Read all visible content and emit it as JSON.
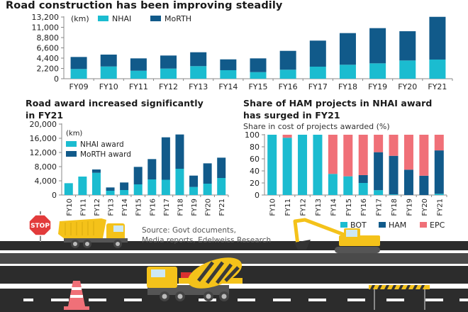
{
  "colors": {
    "nhai": "#1bbcd0",
    "morth": "#115a8a",
    "bot": "#1bbcd0",
    "ham": "#115a8a",
    "epc": "#f07078",
    "axis": "#888888",
    "text": "#222222",
    "road_dark": "#2c2c2c",
    "road_mid": "#4a4a4a",
    "yellow": "#f4c21a"
  },
  "source": {
    "line1": "Source: Govt documents,",
    "line2": "Media reports, Edelweiss Research"
  },
  "scene": {
    "stop_sign_label": "STOP"
  },
  "chart_data": [
    {
      "id": "construction",
      "type": "bar",
      "stacked": true,
      "title": "Road construction has been improving steadily",
      "unit_label": "(km)",
      "xlabel": "",
      "ylabel": "",
      "categories": [
        "FY09",
        "FY10",
        "FY11",
        "FY12",
        "FY13",
        "FY14",
        "FY15",
        "FY16",
        "FY17",
        "FY18",
        "FY19",
        "FY20",
        "FY21"
      ],
      "series": [
        {
          "name": "NHAI",
          "color_key": "nhai",
          "values": [
            2080,
            2620,
            1710,
            2170,
            2690,
            1820,
            1410,
            1930,
            2580,
            2990,
            3290,
            3900,
            4100
          ]
        },
        {
          "name": "MoRTH",
          "color_key": "morth",
          "values": [
            2570,
            2540,
            2640,
            2790,
            2970,
            2320,
            2940,
            4030,
            5570,
            6770,
            7530,
            6260,
            9140
          ]
        }
      ],
      "yticks": [
        0,
        2200,
        4400,
        6600,
        8800,
        11000,
        13200
      ],
      "ytick_labels": [
        "0",
        "2,200",
        "4,400",
        "6,600",
        "8,800",
        "11,000",
        "13,200"
      ],
      "ylim": [
        0,
        13200
      ],
      "legend": "top-left",
      "grid": false
    },
    {
      "id": "award",
      "type": "bar",
      "stacked": true,
      "title": "Road award increased significantly in FY21",
      "title_lines": [
        "Road award increased significantly",
        "in FY21"
      ],
      "unit_label": "(km)",
      "xlabel": "",
      "ylabel": "",
      "categories": [
        "FY10",
        "FY11",
        "FY12",
        "FY13",
        "FY14",
        "FY15",
        "FY16",
        "FY17",
        "FY18",
        "FY19",
        "FY20",
        "FY21"
      ],
      "series": [
        {
          "name": "NHAI award",
          "color_key": "nhai",
          "values": [
            3330,
            5200,
            6270,
            1200,
            1400,
            3000,
            4400,
            4300,
            7400,
            2270,
            3200,
            4800
          ]
        },
        {
          "name": "MoRTH award",
          "color_key": "morth",
          "values": [
            0,
            0,
            930,
            930,
            2130,
            4930,
            5730,
            11970,
            9670,
            3200,
            5730,
            5730
          ]
        }
      ],
      "yticks": [
        0,
        4000,
        8000,
        12000,
        16000,
        20000
      ],
      "ytick_labels": [
        "0",
        "4,000",
        "8,000",
        "12,000",
        "16,000",
        "20,000"
      ],
      "ylim": [
        0,
        20000
      ],
      "legend": "top-left",
      "grid": false
    },
    {
      "id": "ham_share",
      "type": "bar",
      "stacked": true,
      "title": "Share of HAM projects in NHAI award has surged in FY21",
      "title_lines": [
        "Share of HAM projects in NHAI award",
        "has surged in FY21"
      ],
      "subtitle": "Share in cost of projects awarded (%)",
      "xlabel": "",
      "ylabel": "",
      "categories": [
        "FY10",
        "FY11",
        "FY12",
        "FY13",
        "FY14",
        "FY15",
        "FY16",
        "FY17",
        "FY18",
        "FY19",
        "FY20",
        "FY21"
      ],
      "series": [
        {
          "name": "BOT",
          "color_key": "bot",
          "values": [
            100,
            95,
            100,
            100,
            35,
            31,
            20,
            8,
            1,
            0,
            0,
            2
          ]
        },
        {
          "name": "HAM",
          "color_key": "ham",
          "values": [
            0,
            0,
            0,
            0,
            0,
            0,
            13,
            63,
            64,
            42,
            32,
            72
          ]
        },
        {
          "name": "EPC",
          "color_key": "epc",
          "values": [
            0,
            5,
            0,
            0,
            65,
            69,
            67,
            29,
            35,
            58,
            68,
            26
          ]
        }
      ],
      "yticks": [
        0,
        20,
        40,
        60,
        80,
        100
      ],
      "ytick_labels": [
        "0",
        "20",
        "40",
        "60",
        "80",
        "100"
      ],
      "ylim": [
        0,
        100
      ],
      "legend": "bottom-right",
      "grid": false
    }
  ]
}
